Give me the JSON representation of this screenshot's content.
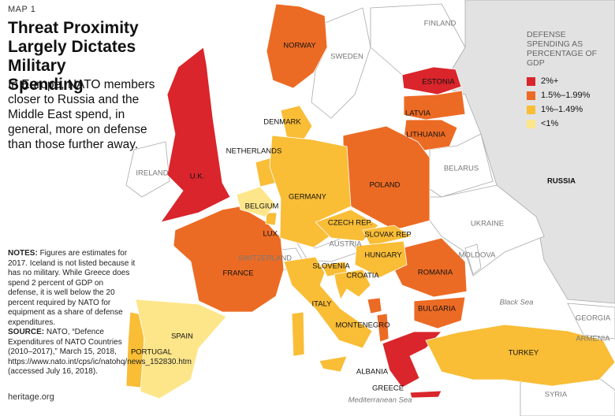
{
  "header": {
    "kicker": "MAP 1",
    "title": "Threat Proximity Largely Dictates Military Spending",
    "subtitle": "In Europe, NATO members closer to Russia and the Middle East spend, in general, more on defense than those further away."
  },
  "notes": {
    "notes_label": "NOTES:",
    "notes_text": "Figures are estimates for 2017. Iceland is not listed because it has no military. While Greece does spend 2 percent of GDP on defense, it is well below the 20 percent required by NATO for equipment as a share of defense expenditures.",
    "source_label": "SOURCE:",
    "source_text": "NATO, “Defence Expenditures of NATO Countries (2010–2017),” March 15, 2018, https://www.nato.int/cps/ic/natohq/news_152830.htm (accessed July 16, 2018)."
  },
  "footer": "heritage.org",
  "legend": {
    "title": "DEFENSE SPENDING AS PERCENTAGE OF GDP",
    "items": [
      {
        "label": "2%+",
        "color": "#d9252b",
        "countries": [
          "U.K.",
          "ESTONIA",
          "GREECE"
        ]
      },
      {
        "label": "1.5%–1.99%",
        "color": "#ec6b24",
        "countries": [
          "NORWAY",
          "LATVIA",
          "LITHUANIA",
          "POLAND",
          "FRANCE",
          "ROMANIA",
          "BULGARIA",
          "MONTENEGRO",
          "ALBANIA"
        ]
      },
      {
        "label": "1%–1.49%",
        "color": "#f9bd36",
        "countries": [
          "DENMARK",
          "NETHERLANDS",
          "GERMANY",
          "LUX.",
          "CZECH REP.",
          "SLOVAK REP",
          "HUNGARY",
          "SLOVENIA",
          "CROATIA",
          "ITALY",
          "PORTUGAL",
          "TURKEY"
        ]
      },
      {
        "label": "<1%",
        "color": "#fde68a",
        "countries": [
          "BELGIUM",
          "SPAIN"
        ]
      }
    ]
  },
  "other_countries": [
    "FINLAND",
    "SWEDEN",
    "IRELAND",
    "BELARUS",
    "RUSSIA",
    "UKRAINE",
    "AUSTRIA",
    "SWITZERLAND",
    "MOLDOVA",
    "GEORGIA",
    "ARMENIA",
    "SYRIA"
  ],
  "seas": [
    "Black Sea",
    "Mediterranean Sea"
  ]
}
